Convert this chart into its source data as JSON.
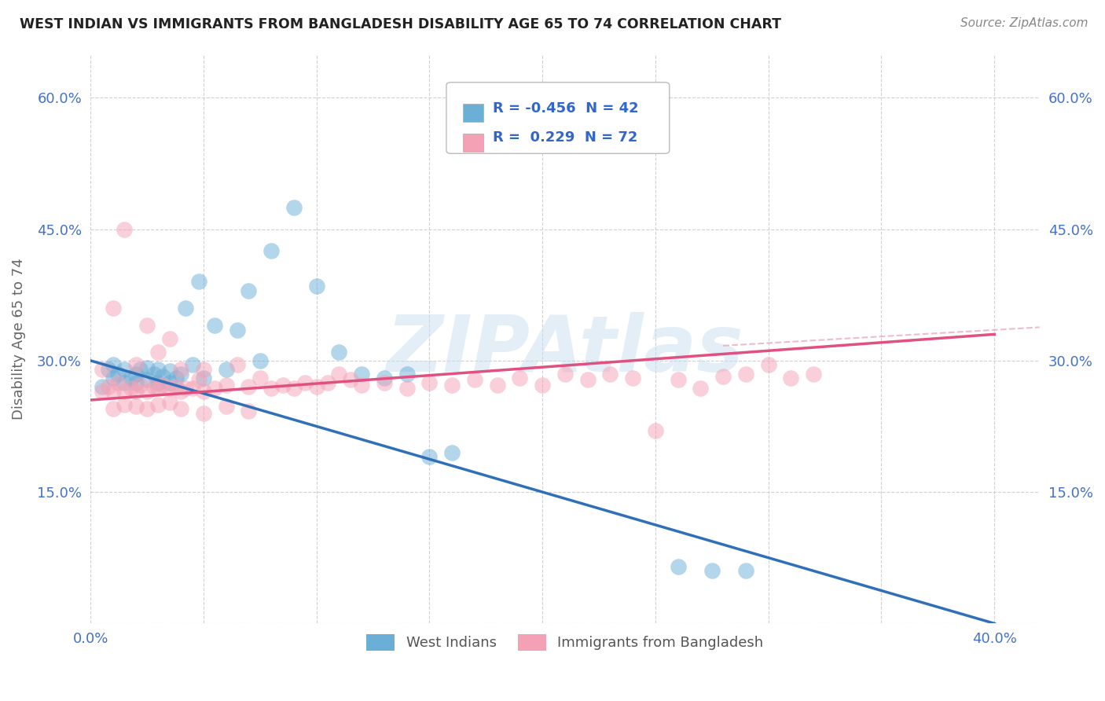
{
  "title": "WEST INDIAN VS IMMIGRANTS FROM BANGLADESH DISABILITY AGE 65 TO 74 CORRELATION CHART",
  "source": "Source: ZipAtlas.com",
  "ylabel": "Disability Age 65 to 74",
  "watermark": "ZIPAtlas",
  "legend_r1": "R = -0.456",
  "legend_n1": "N = 42",
  "legend_r2": "R =  0.229",
  "legend_n2": "N = 72",
  "label1": "West Indians",
  "label2": "Immigrants from Bangladesh",
  "color1": "#6baed6",
  "color2": "#f4a0b5",
  "trendline1_color": "#3070b8",
  "trendline2_color": "#e05080",
  "trendline2_dash_color": "#e8a0b8",
  "background": "#ffffff",
  "xlim": [
    0.0,
    0.42
  ],
  "ylim": [
    0.0,
    0.65
  ],
  "west_indians_x": [
    0.005,
    0.008,
    0.01,
    0.01,
    0.012,
    0.015,
    0.015,
    0.018,
    0.02,
    0.02,
    0.022,
    0.025,
    0.025,
    0.028,
    0.03,
    0.03,
    0.032,
    0.035,
    0.035,
    0.038,
    0.04,
    0.042,
    0.045,
    0.048,
    0.05,
    0.055,
    0.06,
    0.065,
    0.07,
    0.075,
    0.08,
    0.09,
    0.1,
    0.11,
    0.12,
    0.13,
    0.14,
    0.15,
    0.16,
    0.26,
    0.275,
    0.29
  ],
  "west_indians_y": [
    0.27,
    0.29,
    0.28,
    0.295,
    0.285,
    0.275,
    0.29,
    0.28,
    0.275,
    0.285,
    0.29,
    0.278,
    0.292,
    0.285,
    0.275,
    0.29,
    0.282,
    0.275,
    0.288,
    0.28,
    0.285,
    0.36,
    0.295,
    0.39,
    0.28,
    0.34,
    0.29,
    0.335,
    0.38,
    0.3,
    0.425,
    0.475,
    0.385,
    0.31,
    0.285,
    0.28,
    0.285,
    0.19,
    0.195,
    0.065,
    0.06,
    0.06
  ],
  "bangladesh_x": [
    0.005,
    0.005,
    0.008,
    0.01,
    0.01,
    0.012,
    0.015,
    0.015,
    0.018,
    0.02,
    0.02,
    0.022,
    0.025,
    0.025,
    0.028,
    0.03,
    0.03,
    0.032,
    0.035,
    0.035,
    0.038,
    0.04,
    0.04,
    0.042,
    0.045,
    0.048,
    0.05,
    0.05,
    0.055,
    0.06,
    0.065,
    0.07,
    0.075,
    0.08,
    0.085,
    0.09,
    0.095,
    0.1,
    0.105,
    0.11,
    0.115,
    0.12,
    0.13,
    0.14,
    0.15,
    0.16,
    0.17,
    0.18,
    0.19,
    0.2,
    0.21,
    0.22,
    0.23,
    0.24,
    0.25,
    0.26,
    0.27,
    0.28,
    0.29,
    0.3,
    0.31,
    0.32,
    0.01,
    0.015,
    0.02,
    0.025,
    0.03,
    0.035,
    0.04,
    0.05,
    0.06,
    0.07
  ],
  "bangladesh_y": [
    0.265,
    0.29,
    0.27,
    0.265,
    0.36,
    0.275,
    0.265,
    0.45,
    0.268,
    0.265,
    0.295,
    0.272,
    0.265,
    0.34,
    0.27,
    0.268,
    0.31,
    0.272,
    0.268,
    0.325,
    0.27,
    0.265,
    0.29,
    0.268,
    0.268,
    0.278,
    0.265,
    0.29,
    0.268,
    0.272,
    0.295,
    0.27,
    0.28,
    0.268,
    0.272,
    0.268,
    0.275,
    0.27,
    0.275,
    0.285,
    0.278,
    0.272,
    0.275,
    0.268,
    0.275,
    0.272,
    0.278,
    0.272,
    0.28,
    0.272,
    0.285,
    0.278,
    0.285,
    0.28,
    0.22,
    0.278,
    0.268,
    0.282,
    0.285,
    0.295,
    0.28,
    0.285,
    0.245,
    0.25,
    0.248,
    0.245,
    0.25,
    0.252,
    0.245,
    0.24,
    0.248,
    0.242
  ],
  "trendline1_x0": 0.0,
  "trendline1_y0": 0.3,
  "trendline1_x1": 0.4,
  "trendline1_y1": 0.0,
  "trendline2_x0": 0.0,
  "trendline2_y0": 0.255,
  "trendline2_x1": 0.4,
  "trendline2_y1": 0.33,
  "trendline2_dash_x0": 0.28,
  "trendline2_dash_y0": 0.317,
  "trendline2_dash_x1": 0.42,
  "trendline2_dash_y1": 0.338
}
